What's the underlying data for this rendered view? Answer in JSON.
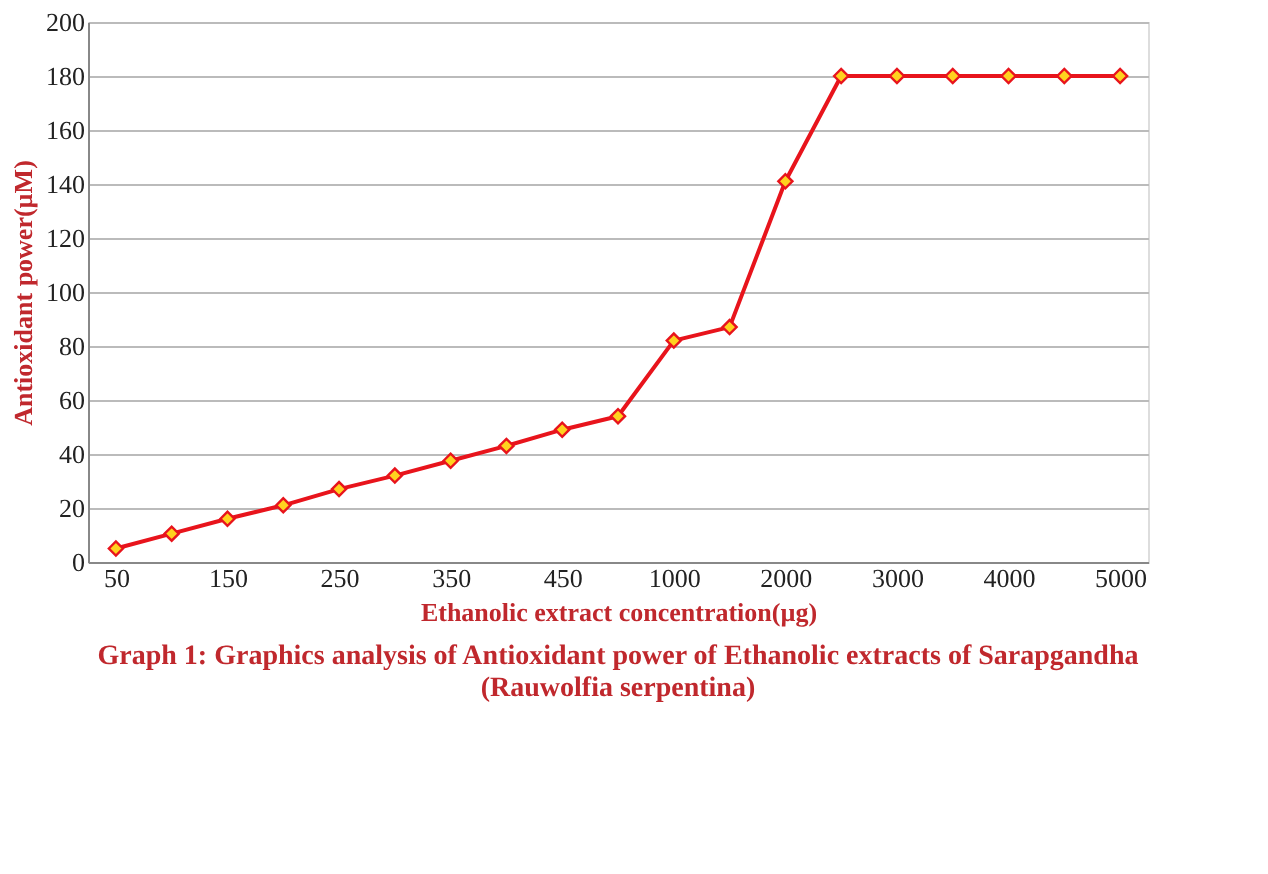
{
  "chart_data": {
    "type": "line",
    "xlabel": "Ethanolic extract concentration(µg)",
    "ylabel": "Antioxidant power(µM)",
    "annotations": [
      "Graph 1: Graphics analysis of Antioxidant power of Ethanolic extracts of Sarapgandha",
      "(Rauwolfia serpentina)"
    ],
    "categories": [
      "50",
      null,
      "150",
      null,
      "250",
      null,
      "350",
      null,
      "450",
      null,
      "1000",
      null,
      "2000",
      null,
      "3000",
      null,
      "4000",
      null,
      "5000"
    ],
    "series": [
      {
        "color": "#e8141c",
        "values": [
          5,
          10.5,
          16,
          21,
          27,
          32,
          37.5,
          43,
          49,
          54,
          82,
          87,
          141,
          180,
          180,
          180,
          180,
          180,
          180
        ]
      }
    ],
    "ylim": [
      0,
      200
    ],
    "yticks": [
      0,
      20,
      40,
      60,
      80,
      100,
      120,
      140,
      160,
      180,
      200
    ],
    "grid": "y",
    "marker": "diamond",
    "line_style": "solid"
  }
}
